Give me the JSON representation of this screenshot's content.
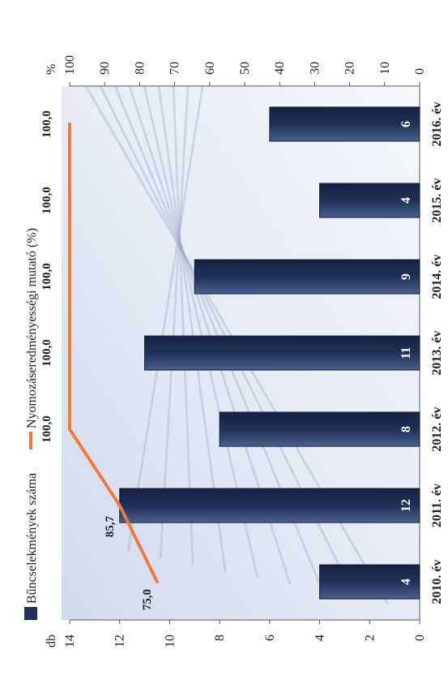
{
  "chart_data": {
    "type": "bar",
    "categories": [
      "2010. év",
      "2011. év",
      "2012. év",
      "2013. év",
      "2014. év",
      "2015. év",
      "2016. év"
    ],
    "series": [
      {
        "name": "Bűncselekmények száma",
        "type": "bar",
        "axis": "left",
        "values": [
          4,
          12,
          8,
          11,
          9,
          4,
          6
        ],
        "labels": [
          "4",
          "12",
          "8",
          "11",
          "9",
          "4",
          "6"
        ],
        "color": "#1f3158"
      },
      {
        "name": "Nyomozáseredményességi mutató (%)",
        "type": "line",
        "axis": "right",
        "values": [
          75.0,
          85.7,
          100.0,
          100.0,
          100.0,
          100.0,
          100.0
        ],
        "labels": [
          "75,0",
          "85,7",
          "100,0",
          "100,0",
          "100,0",
          "100,0",
          "100,0"
        ],
        "color": "#f07a3c"
      }
    ],
    "left_axis": {
      "unit": "db",
      "min": 0,
      "max": 14,
      "ticks": [
        "0",
        "2",
        "4",
        "6",
        "8",
        "10",
        "12",
        "14"
      ]
    },
    "right_axis": {
      "unit": "%",
      "min": 0,
      "max": 100,
      "ticks": [
        "0",
        "10",
        "20",
        "30",
        "40",
        "50",
        "60",
        "70",
        "80",
        "90",
        "100"
      ]
    },
    "legend_position": "top",
    "orientation": "rotated 90° counter-clockwise",
    "grid": false
  }
}
